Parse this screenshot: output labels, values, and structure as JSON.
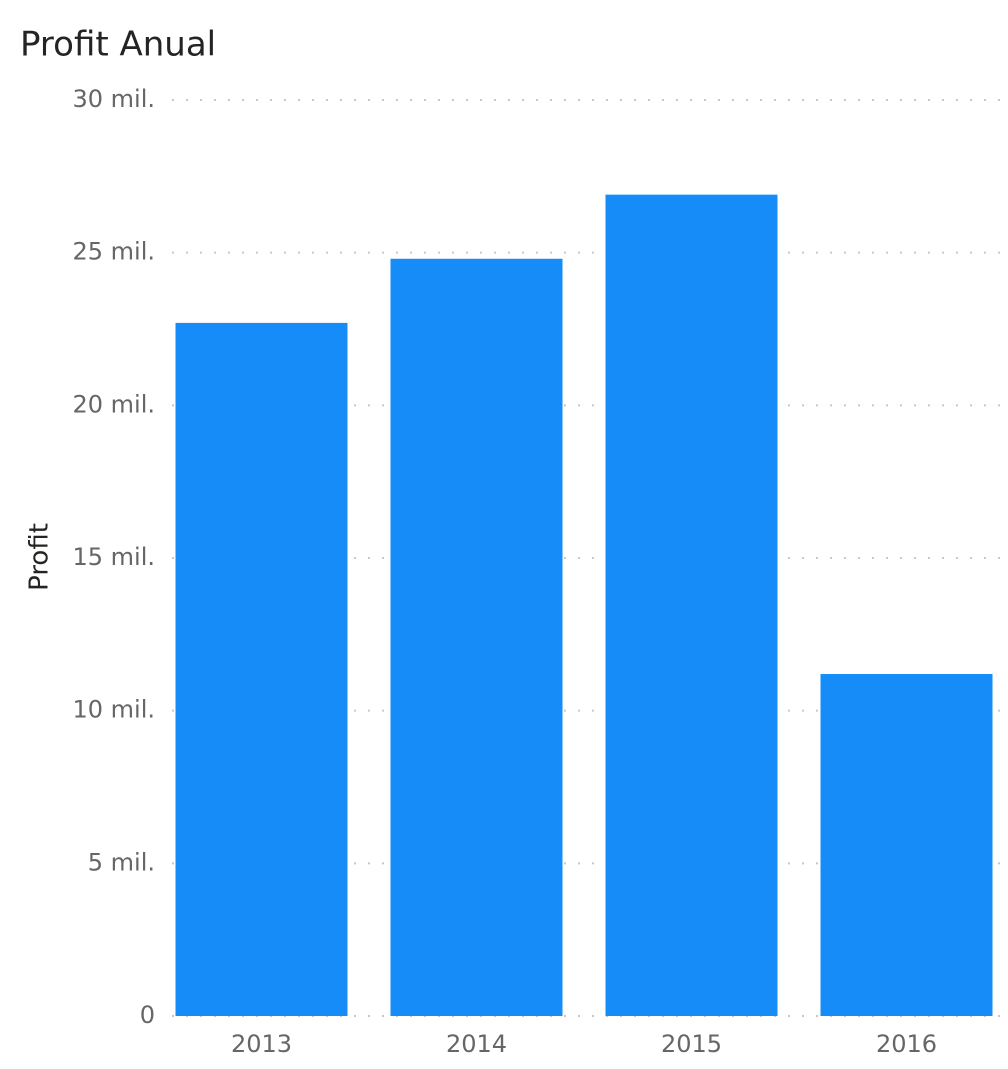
{
  "chart_data": {
    "type": "bar",
    "title": "Profit Anual",
    "y_label": "Profit",
    "categories": [
      "2013",
      "2014",
      "2015",
      "2016"
    ],
    "values": [
      22700,
      24800,
      26900,
      11200
    ],
    "color": "#168cf9",
    "ylim": [
      0,
      30000
    ],
    "yticks": [
      0,
      {
        "value": 5000,
        "label": "5 mil."
      },
      {
        "value": 10000,
        "label": "10 mil."
      },
      {
        "value": 15000,
        "label": "15 mil."
      },
      {
        "value": 20000,
        "label": "20 mil."
      },
      {
        "value": 25000,
        "label": "25 mil."
      },
      {
        "value": 30000,
        "label": "30 mil."
      }
    ],
    "grid": true
  }
}
